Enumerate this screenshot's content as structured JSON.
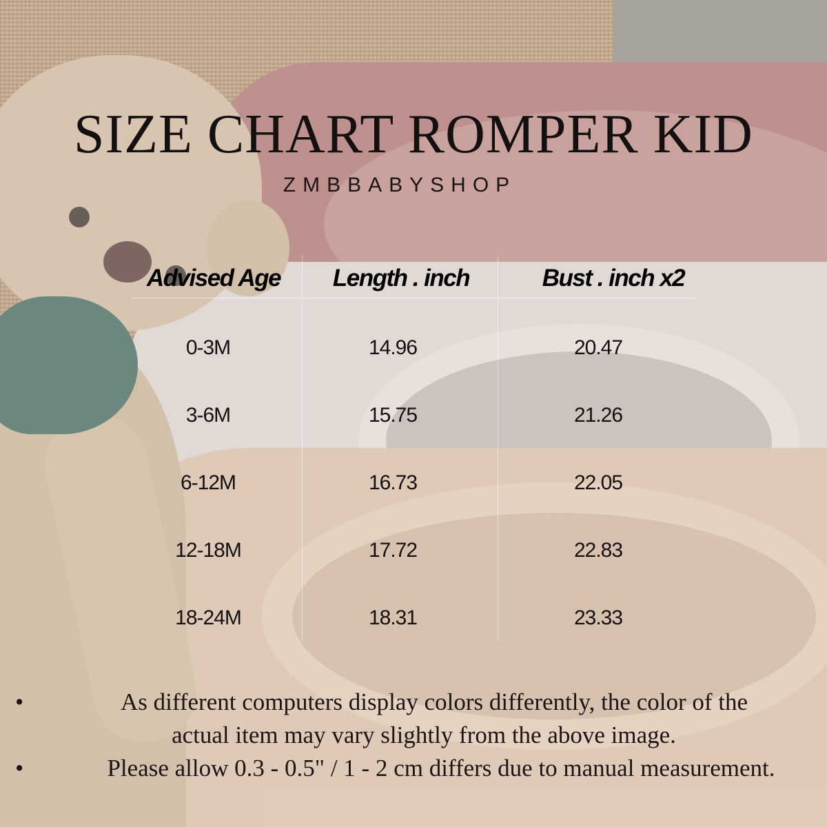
{
  "header": {
    "title": "SIZE CHART ROMPER KID",
    "brand": "ZMBBABYSHOP"
  },
  "table": {
    "columns": [
      "Advised Age",
      "Length . inch",
      "Bust . inch x2"
    ],
    "rows": [
      [
        "0-3M",
        "14.96",
        "20.47"
      ],
      [
        "3-6M",
        "15.75",
        "21.26"
      ],
      [
        "6-12M",
        "16.73",
        "22.05"
      ],
      [
        "12-18M",
        "17.72",
        "22.83"
      ],
      [
        "18-24M",
        "18.31",
        "23.33"
      ]
    ]
  },
  "notes": [
    {
      "bullet": "•",
      "lines": [
        "As different computers display colors differently, the color of the",
        "actual item may vary slightly from the above image."
      ]
    },
    {
      "bullet": "•",
      "lines": [
        "Please allow 0.3 - 0.5\" / 1 - 2 cm differs due to manual measurement."
      ]
    }
  ],
  "colors": {
    "text": "#141010",
    "pink_romper": "#a96a6c",
    "white_romper": "#dcd6d1",
    "peach_romper": "#d9c0aa",
    "scarf": "#2e5d55"
  }
}
